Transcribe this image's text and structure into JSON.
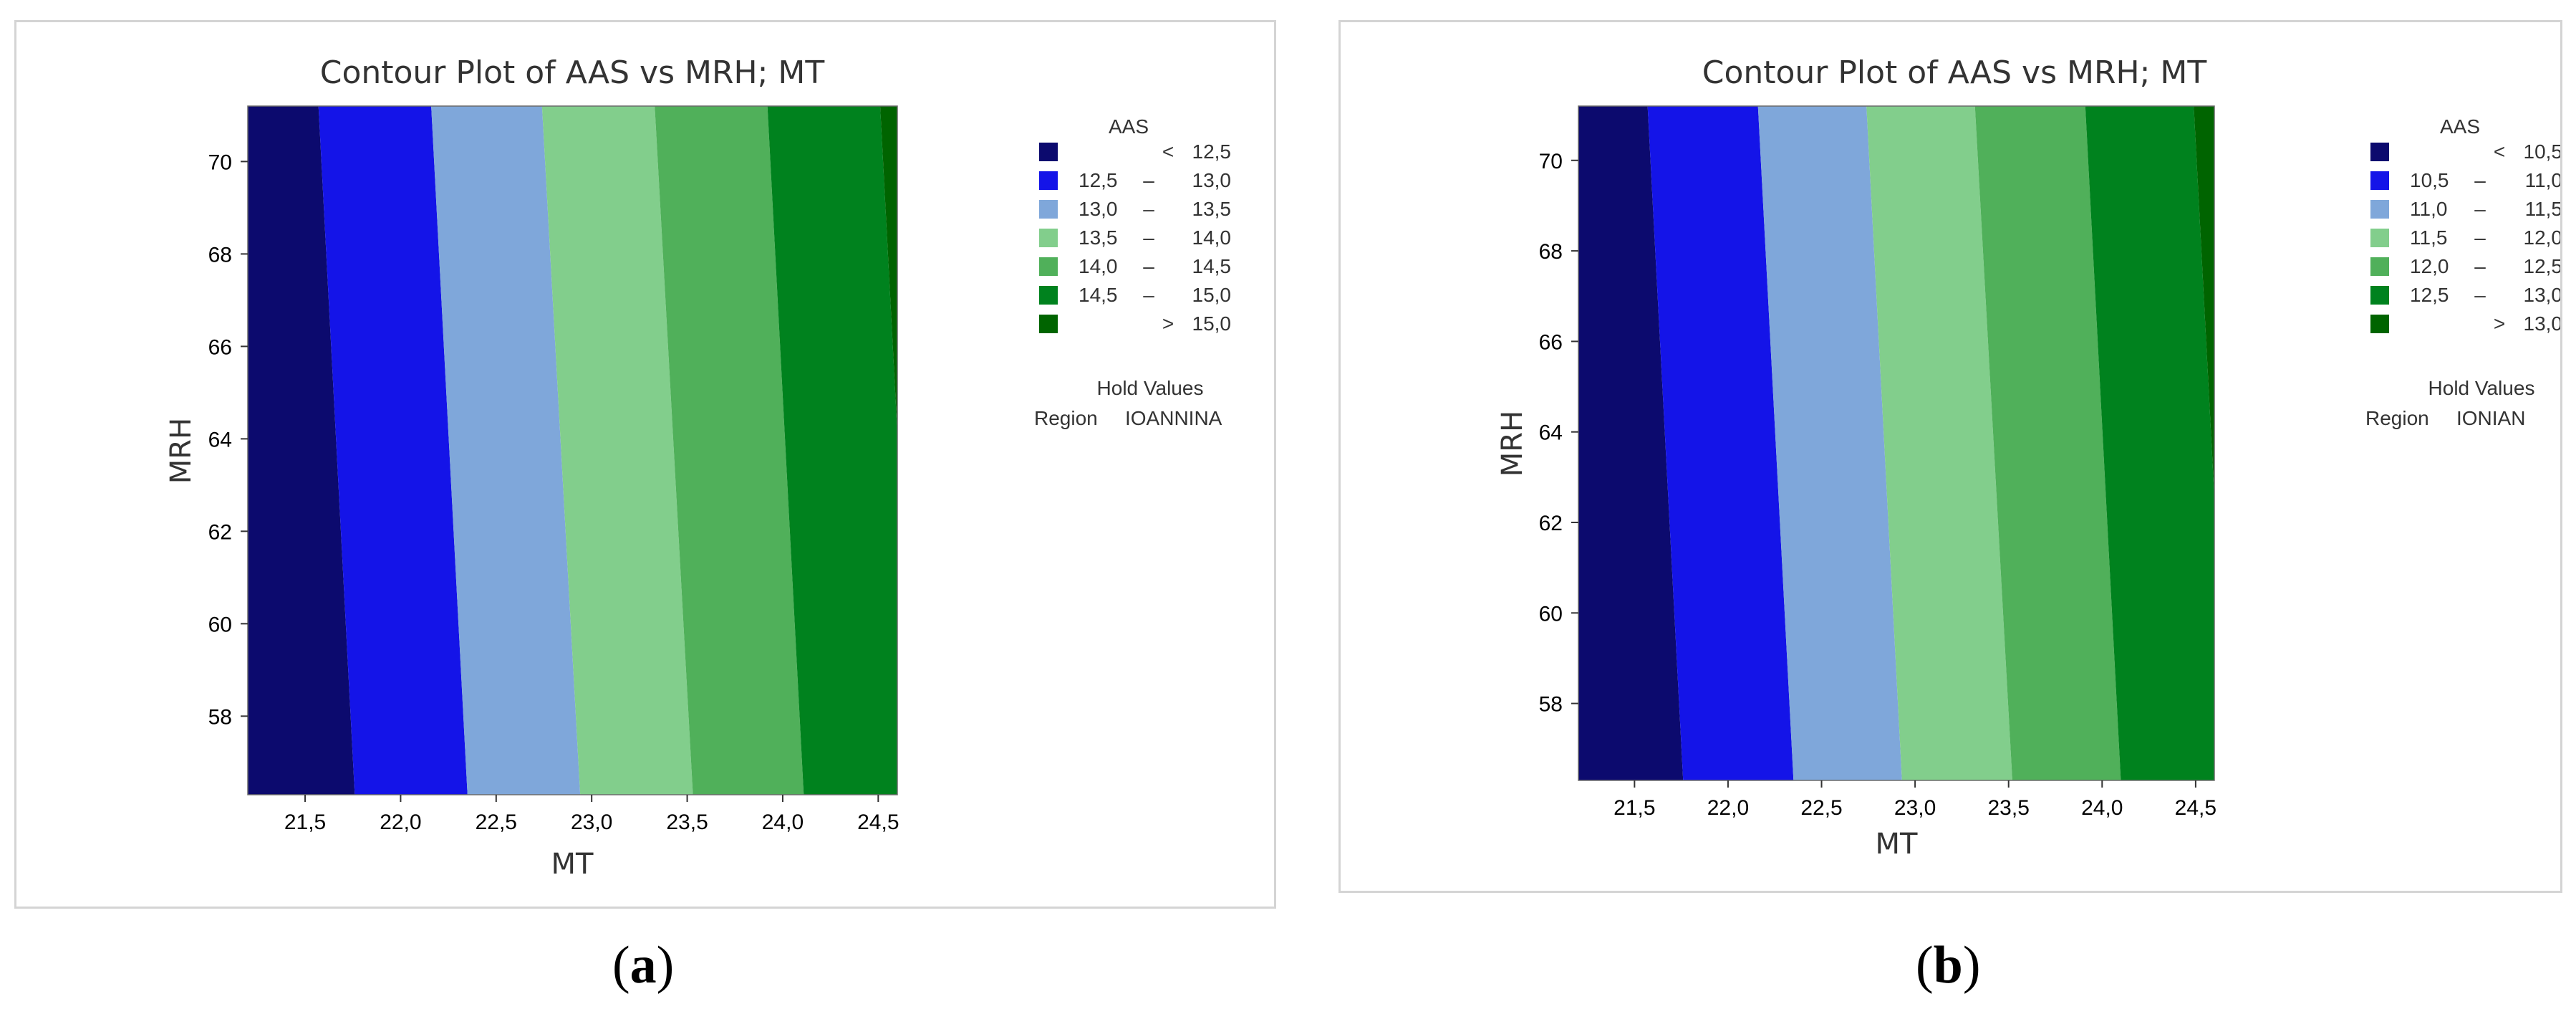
{
  "chart_data": [
    {
      "type": "contour",
      "title": "Contour Plot of AAS vs MRH; MT",
      "xlabel": "MT",
      "ylabel": "MRH",
      "xlim": [
        21.2,
        24.6
      ],
      "ylim": [
        56.3,
        71.2
      ],
      "xticks": [
        "21,5",
        "22,0",
        "22,5",
        "23,0",
        "23,5",
        "24,0",
        "24,5"
      ],
      "xtick_values": [
        21.5,
        22.0,
        22.5,
        23.0,
        23.5,
        24.0,
        24.5
      ],
      "yticks": [
        "58",
        "60",
        "62",
        "64",
        "66",
        "68",
        "70"
      ],
      "ytick_values": [
        58,
        60,
        62,
        64,
        66,
        68,
        70
      ],
      "legend_title": "AAS",
      "legend": [
        {
          "low": "<",
          "high": "12,5",
          "color": "#0c0a6e"
        },
        {
          "low": "12,5",
          "high": "13,0",
          "color": "#1414e8"
        },
        {
          "low": "13,0",
          "high": "13,5",
          "color": "#7fa7da"
        },
        {
          "low": "13,5",
          "high": "14,0",
          "color": "#82ce8c"
        },
        {
          "low": "14,0",
          "high": "14,5",
          "color": "#50b05a"
        },
        {
          "low": "14,5",
          "high": "15,0",
          "color": "#00821e"
        },
        {
          "low": ">",
          "high": "15,0",
          "color": "#006400"
        }
      ],
      "hold_title": "Hold Values",
      "hold_label": "Region",
      "hold_value": "IOANNINA",
      "boundaries": [
        {
          "level": "12,5",
          "mt_at_top": 21.57,
          "mt_at_bottom": 21.76
        },
        {
          "level": "13,0",
          "mt_at_top": 22.16,
          "mt_at_bottom": 22.35
        },
        {
          "level": "13,5",
          "mt_at_top": 22.74,
          "mt_at_bottom": 22.94
        },
        {
          "level": "14,0",
          "mt_at_top": 23.33,
          "mt_at_bottom": 23.53
        },
        {
          "level": "14,5",
          "mt_at_top": 23.92,
          "mt_at_bottom": 24.11
        },
        {
          "level": "15,0",
          "mt_at_top": 24.51,
          "mt_at_bottom": 24.7
        }
      ]
    },
    {
      "type": "contour",
      "title": "Contour Plot of AAS vs MRH; MT",
      "xlabel": "MT",
      "ylabel": "MRH",
      "xlim": [
        21.2,
        24.6
      ],
      "ylim": [
        56.3,
        71.2
      ],
      "xticks": [
        "21,5",
        "22,0",
        "22,5",
        "23,0",
        "23,5",
        "24,0",
        "24,5"
      ],
      "xtick_values": [
        21.5,
        22.0,
        22.5,
        23.0,
        23.5,
        24.0,
        24.5
      ],
      "yticks": [
        "58",
        "60",
        "62",
        "64",
        "66",
        "68",
        "70"
      ],
      "ytick_values": [
        58,
        60,
        62,
        64,
        66,
        68,
        70
      ],
      "legend_title": "AAS",
      "legend": [
        {
          "low": "<",
          "high": "10,5",
          "color": "#0c0a6e"
        },
        {
          "low": "10,5",
          "high": "11,0",
          "color": "#1414e8"
        },
        {
          "low": "11,0",
          "high": "11,5",
          "color": "#7fa7da"
        },
        {
          "low": "11,5",
          "high": "12,0",
          "color": "#82ce8c"
        },
        {
          "low": "12,0",
          "high": "12,5",
          "color": "#50b05a"
        },
        {
          "low": "12,5",
          "high": "13,0",
          "color": "#00821e"
        },
        {
          "low": ">",
          "high": "13,0",
          "color": "#006400"
        }
      ],
      "hold_title": "Hold Values",
      "hold_label": "Region",
      "hold_value": "IONIAN",
      "boundaries": [
        {
          "level": "10,5",
          "mt_at_top": 21.57,
          "mt_at_bottom": 21.76
        },
        {
          "level": "11,0",
          "mt_at_top": 22.16,
          "mt_at_bottom": 22.35
        },
        {
          "level": "11,5",
          "mt_at_top": 22.74,
          "mt_at_bottom": 22.93
        },
        {
          "level": "12,0",
          "mt_at_top": 23.32,
          "mt_at_bottom": 23.52
        },
        {
          "level": "12,5",
          "mt_at_top": 23.91,
          "mt_at_bottom": 24.1
        },
        {
          "level": "13,0",
          "mt_at_top": 24.49,
          "mt_at_bottom": 24.68
        }
      ]
    }
  ],
  "captions": [
    "a",
    "b"
  ]
}
